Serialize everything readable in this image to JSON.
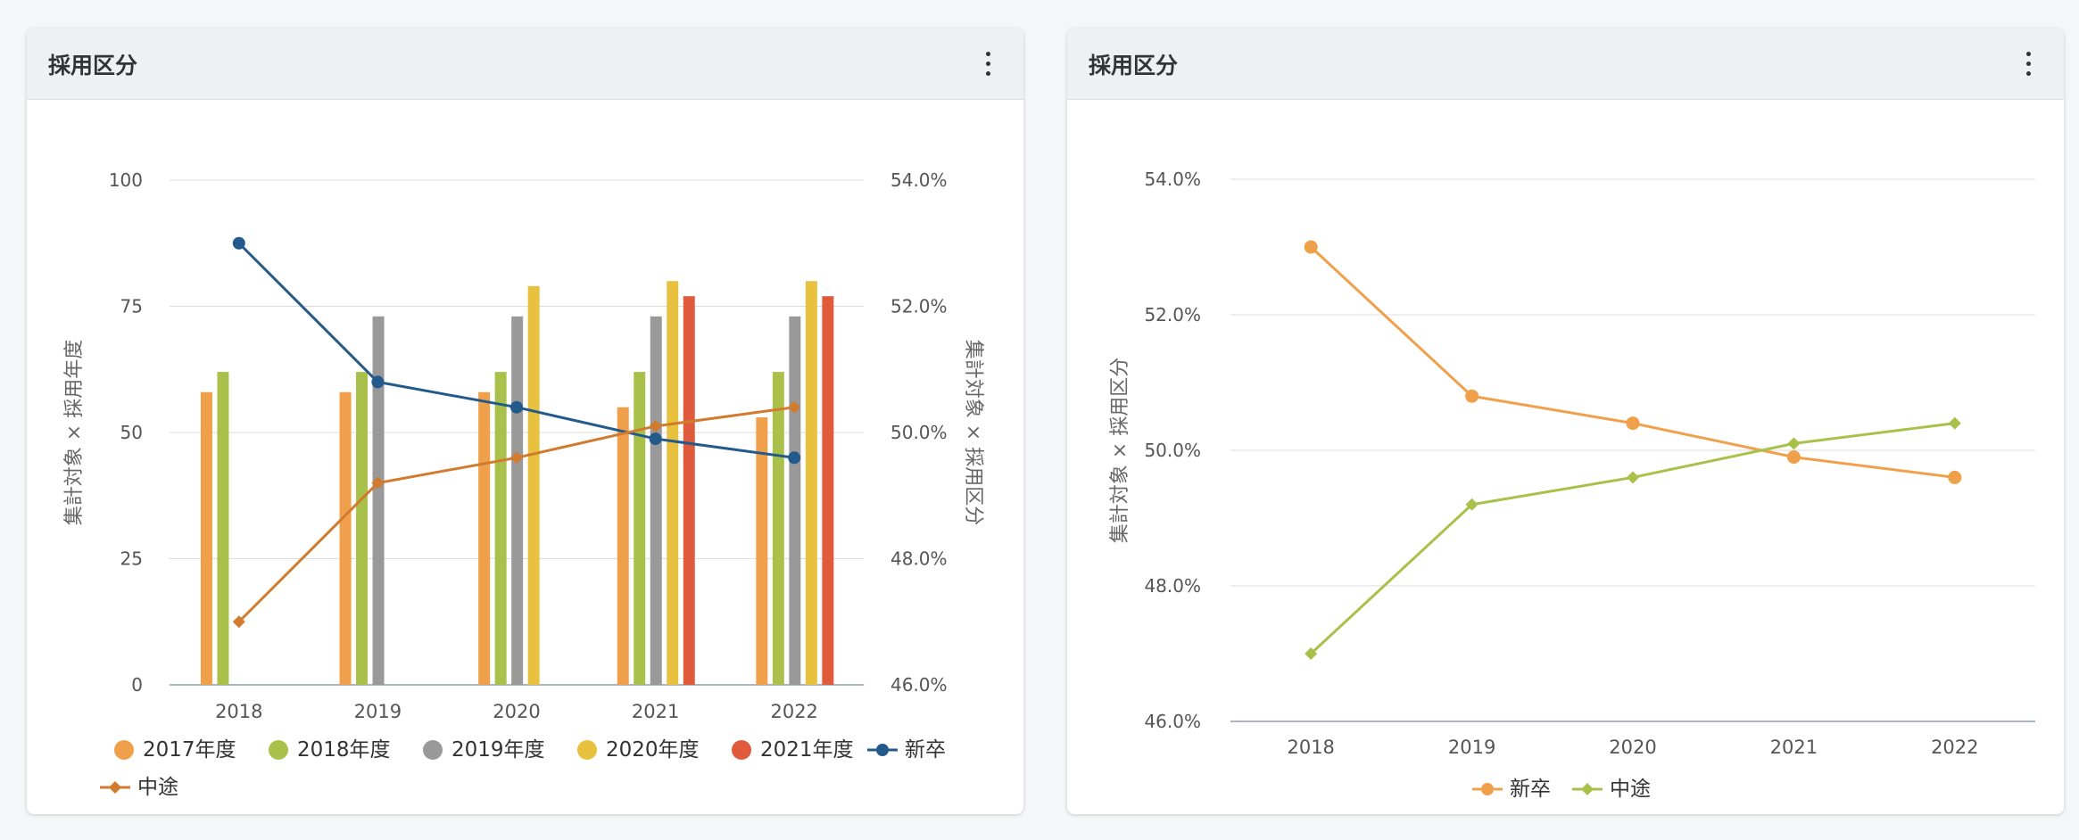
{
  "cards": [
    {
      "title": "採用区分"
    },
    {
      "title": "採用区分"
    }
  ],
  "charts": [
    {
      "type": "bar",
      "title": "",
      "categories": [
        "2018",
        "2019",
        "2020",
        "2021",
        "2022"
      ],
      "left_axis": {
        "label": "集計対象 × 採用年度",
        "range": [
          0,
          100
        ],
        "ticks": [
          "0",
          "25",
          "50",
          "75",
          "100"
        ]
      },
      "right_axis": {
        "label": "集計対象 × 採用区分",
        "range": [
          0.46,
          0.54
        ],
        "ticks": [
          "46.0%",
          "48.0%",
          "50.0%",
          "52.0%",
          "54.0%"
        ]
      },
      "bar_series": [
        {
          "name": "2017年度",
          "color": "#f0a04b",
          "values": [
            58,
            58,
            58,
            55,
            53
          ]
        },
        {
          "name": "2018年度",
          "color": "#a9c14a",
          "values": [
            62,
            62,
            62,
            62,
            62
          ]
        },
        {
          "name": "2019年度",
          "color": "#999999",
          "values": [
            null,
            73,
            73,
            73,
            73
          ]
        },
        {
          "name": "2020年度",
          "color": "#e8c13e",
          "values": [
            null,
            null,
            79,
            80,
            80
          ]
        },
        {
          "name": "2021年度",
          "color": "#e05a3c",
          "values": [
            null,
            null,
            null,
            77,
            77
          ]
        }
      ],
      "line_series": [
        {
          "name": "新卒",
          "color": "#235a8c",
          "marker": "circle",
          "values": [
            0.53,
            0.508,
            0.504,
            0.499,
            0.496
          ]
        },
        {
          "name": "中途",
          "color": "#d27a2e",
          "marker": "diamond",
          "values": [
            0.47,
            0.492,
            0.496,
            0.501,
            0.504
          ]
        }
      ],
      "legend": "bottom",
      "grid": true
    },
    {
      "type": "line",
      "title": "",
      "categories": [
        "2018",
        "2019",
        "2020",
        "2021",
        "2022"
      ],
      "left_axis": {
        "label": "集計対象 × 採用区分",
        "range": [
          0.46,
          0.54
        ],
        "ticks": [
          "46.0%",
          "48.0%",
          "50.0%",
          "52.0%",
          "54.0%"
        ]
      },
      "line_series": [
        {
          "name": "新卒",
          "color": "#f0a04b",
          "marker": "circle",
          "values": [
            0.53,
            0.508,
            0.504,
            0.499,
            0.496
          ]
        },
        {
          "name": "中途",
          "color": "#a9c14a",
          "marker": "diamond",
          "values": [
            0.47,
            0.492,
            0.496,
            0.501,
            0.504
          ]
        }
      ],
      "legend": "bottom",
      "grid": true
    }
  ]
}
